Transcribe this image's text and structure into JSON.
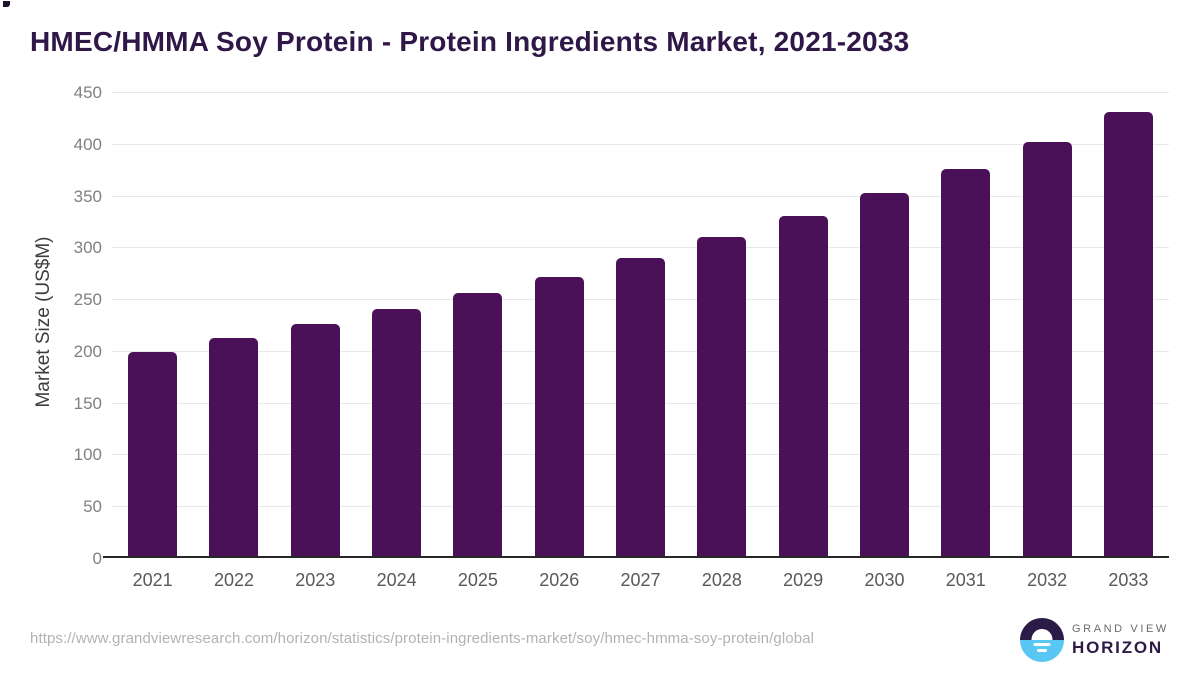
{
  "title": "HMEC/HMMA Soy Protein - Protein Ingredients Market, 2021-2033",
  "chart_data": {
    "type": "bar",
    "title": "HMEC/HMMA Soy Protein - Protein Ingredients Market, 2021-2033",
    "categories": [
      "2021",
      "2022",
      "2023",
      "2024",
      "2025",
      "2026",
      "2027",
      "2028",
      "2029",
      "2030",
      "2031",
      "2032",
      "2033"
    ],
    "values": [
      198,
      211,
      225,
      240,
      255,
      271,
      289,
      309,
      330,
      352,
      375,
      402,
      431
    ],
    "xlabel": "",
    "ylabel": "Market Size (US$M)",
    "ylim": [
      0,
      450
    ],
    "yticks": [
      0,
      50,
      100,
      150,
      200,
      250,
      300,
      350,
      400,
      450
    ],
    "grid": true,
    "legend": "none",
    "bar_color": "#4a1058"
  },
  "footer": {
    "source_url": "https://www.grandviewresearch.com/horizon/statistics/protein-ingredients-market/soy/hmec-hmma-soy-protein/global",
    "brand": {
      "line1": "GRAND VIEW",
      "line2": "HORIZON"
    }
  },
  "colors": {
    "bar": "#4a1058",
    "title_text": "#2f1747",
    "gridline": "#e8e8e8",
    "axis_line": "#262626",
    "y_tick_text": "#808080",
    "x_tick_text": "#595959",
    "url_text": "#b2b2b2",
    "logo_purple": "#2b1b47",
    "logo_blue": "#58c7f3"
  }
}
